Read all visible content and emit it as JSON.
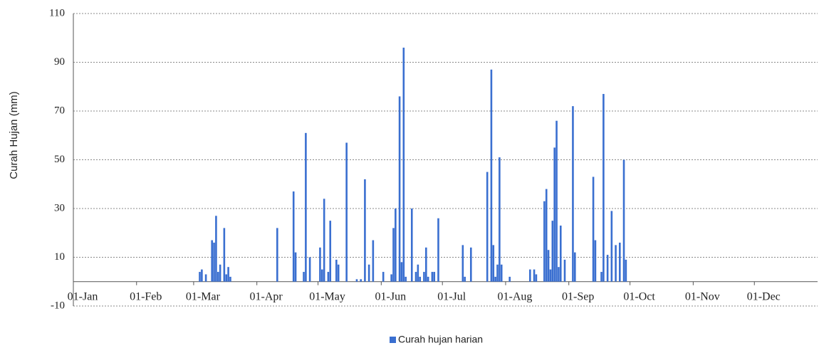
{
  "chart_data": {
    "type": "bar",
    "y_label": "Curah Hujan (mm)",
    "series": [
      {
        "name": "Curah hujan harian",
        "color": "#3a6fd0",
        "x": [
          63,
          64,
          66,
          69,
          70,
          71,
          72,
          73,
          75,
          76,
          77,
          78,
          101,
          109,
          110,
          114,
          115,
          117,
          122,
          123,
          124,
          126,
          127,
          130,
          131,
          135,
          140,
          142,
          144,
          146,
          148,
          153,
          157,
          158,
          159,
          161,
          162,
          163,
          164,
          167,
          169,
          170,
          171,
          173,
          174,
          175,
          177,
          178,
          180,
          192,
          193,
          196,
          204,
          206,
          207,
          208,
          209,
          210,
          211,
          215,
          225,
          227,
          228,
          232,
          233,
          234,
          235,
          236,
          237,
          238,
          239,
          240,
          242,
          246,
          247,
          256,
          257,
          260,
          261,
          263,
          265,
          267,
          269,
          271,
          272
        ],
        "values": [
          4,
          5,
          3,
          17,
          16,
          27,
          4,
          7,
          22,
          3,
          6,
          2,
          22,
          37,
          12,
          4,
          61,
          10,
          14,
          5,
          34,
          4,
          25,
          9,
          7,
          57,
          1,
          1,
          42,
          7,
          17,
          4,
          3,
          22,
          30,
          76,
          8,
          96,
          2,
          30,
          4,
          7,
          2,
          4,
          14,
          2,
          4,
          4,
          26,
          15,
          2,
          14,
          45,
          87,
          15,
          2,
          7,
          51,
          7,
          2,
          5,
          5,
          3,
          33,
          38,
          13,
          5,
          25,
          55,
          66,
          6,
          23,
          9,
          72,
          12,
          43,
          17,
          4,
          77,
          11,
          29,
          15,
          16,
          50,
          9
        ]
      }
    ],
    "xlim": [
      1,
      366
    ],
    "xticks": [
      {
        "value": 1,
        "label": "01-Jan"
      },
      {
        "value": 32,
        "label": "01-Feb"
      },
      {
        "value": 60,
        "label": "01-Mar"
      },
      {
        "value": 91,
        "label": "01-Apr"
      },
      {
        "value": 121,
        "label": "01-May"
      },
      {
        "value": 152,
        "label": "01-Jun"
      },
      {
        "value": 182,
        "label": "01-Jul"
      },
      {
        "value": 213,
        "label": "01-Aug"
      },
      {
        "value": 244,
        "label": "01-Sep"
      },
      {
        "value": 274,
        "label": "01-Oct"
      },
      {
        "value": 305,
        "label": "01-Nov"
      },
      {
        "value": 335,
        "label": "01-Dec"
      }
    ],
    "ylim": [
      -10,
      110
    ],
    "yticks": [
      -10,
      10,
      30,
      50,
      70,
      90,
      110
    ],
    "grid": true,
    "legend": "bottom"
  }
}
